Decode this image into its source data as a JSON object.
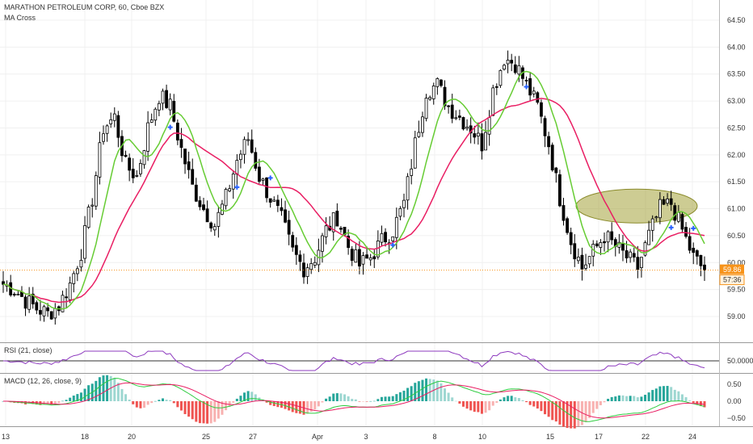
{
  "header": {
    "symbol_line": "MARATHON PETROLEUM CORP, 60, Cboe BZX",
    "indicator": "MA Cross"
  },
  "rsi_label": "RSI (21, close)",
  "macd_label": "MACD (12, 26, close, 9)",
  "colors": {
    "up": "#ffffff",
    "down": "#000000",
    "fast_ma": "#66cc33",
    "slow_ma": "#e91e63",
    "rsi": "#8e3bbf",
    "macd_line": "#2ecc40",
    "signal_line": "#e91e63",
    "hist_up": "#26a69a",
    "hist_down": "#ef5350",
    "cross_marker": "#2962ff",
    "ellipse_fill": "#a4a23a",
    "price_tag": "#f7931a",
    "rsi_level": "#333333"
  },
  "chart_data": {
    "type": "candlestick",
    "title": "MARATHON PETROLEUM CORP, 60, Cboe BZX",
    "price_axis": {
      "ylim": [
        58.7,
        64.7
      ],
      "ticks": [
        "59.00",
        "59.50",
        "60.00",
        "60.50",
        "61.00",
        "61.50",
        "62.00",
        "62.50",
        "63.00",
        "63.50",
        "64.00",
        "64.50"
      ]
    },
    "x_ticks": [
      "13",
      "18",
      "20",
      "25",
      "27",
      "Apr",
      "3",
      "8",
      "10",
      "15",
      "17",
      "22",
      "24"
    ],
    "last_price": "59.86",
    "countdown": "57:36",
    "price_waypoints": [
      59.6,
      59.5,
      59.3,
      59.15,
      59.05,
      59.2,
      59.6,
      60.2,
      61.2,
      62.5,
      62.7,
      61.8,
      61.6,
      62.5,
      63.1,
      62.9,
      62.1,
      61.4,
      61.0,
      60.7,
      61.2,
      61.9,
      62.3,
      61.6,
      61.2,
      60.8,
      60.2,
      59.9,
      60.1,
      60.6,
      60.85,
      60.3,
      59.95,
      60.1,
      60.4,
      60.6,
      61.1,
      62.2,
      63.2,
      63.3,
      62.9,
      62.7,
      62.5,
      62.2,
      63.2,
      63.8,
      63.7,
      63.3,
      62.9,
      62.2,
      61.2,
      60.4,
      59.9,
      60.2,
      60.5,
      60.3,
      60.1,
      59.9,
      60.5,
      61.0,
      61.1,
      60.6,
      60.1,
      59.86
    ],
    "rsi": {
      "level": "50.0000",
      "label": "RSI (21, close)"
    },
    "macd": {
      "label": "MACD (12, 26, close, 9)",
      "ticks": [
        "0.50",
        "0.00",
        "−0.50"
      ],
      "ylim": [
        -0.8,
        0.8
      ]
    },
    "cross_markers_at_waypoint": [
      15,
      21,
      24,
      35,
      47,
      60,
      62
    ],
    "highlight_ellipse": {
      "price_center": 61.05,
      "x_from_label": "17",
      "x_to_label": "24"
    }
  }
}
